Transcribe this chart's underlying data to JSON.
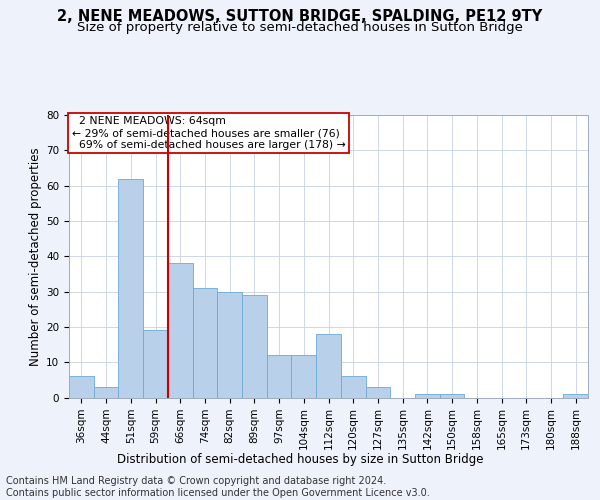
{
  "title": "2, NENE MEADOWS, SUTTON BRIDGE, SPALDING, PE12 9TY",
  "subtitle": "Size of property relative to semi-detached houses in Sutton Bridge",
  "xlabel": "Distribution of semi-detached houses by size in Sutton Bridge",
  "ylabel": "Number of semi-detached properties",
  "categories": [
    "36sqm",
    "44sqm",
    "51sqm",
    "59sqm",
    "66sqm",
    "74sqm",
    "82sqm",
    "89sqm",
    "97sqm",
    "104sqm",
    "112sqm",
    "120sqm",
    "127sqm",
    "135sqm",
    "142sqm",
    "150sqm",
    "158sqm",
    "165sqm",
    "173sqm",
    "180sqm",
    "188sqm"
  ],
  "values": [
    6,
    3,
    62,
    19,
    38,
    31,
    30,
    29,
    12,
    12,
    18,
    6,
    3,
    0,
    1,
    1,
    0,
    0,
    0,
    0,
    1
  ],
  "bar_color": "#b8d0ea",
  "bar_edgecolor": "#6aaad4",
  "highlight_label": "2 NENE MEADOWS: 64sqm",
  "smaller_pct": "29%",
  "smaller_count": 76,
  "larger_pct": "69%",
  "larger_count": 178,
  "vline_color": "#cc0000",
  "annotation_box_edgecolor": "#cc0000",
  "ylim": [
    0,
    80
  ],
  "yticks": [
    0,
    10,
    20,
    30,
    40,
    50,
    60,
    70,
    80
  ],
  "footer1": "Contains HM Land Registry data © Crown copyright and database right 2024.",
  "footer2": "Contains public sector information licensed under the Open Government Licence v3.0.",
  "background_color": "#eef2fb",
  "plot_background": "#ffffff",
  "title_fontsize": 10.5,
  "subtitle_fontsize": 9.5,
  "axis_label_fontsize": 8.5,
  "tick_fontsize": 7.5,
  "annotation_fontsize": 7.8,
  "footer_fontsize": 7.0,
  "vline_x_index": 3.5
}
